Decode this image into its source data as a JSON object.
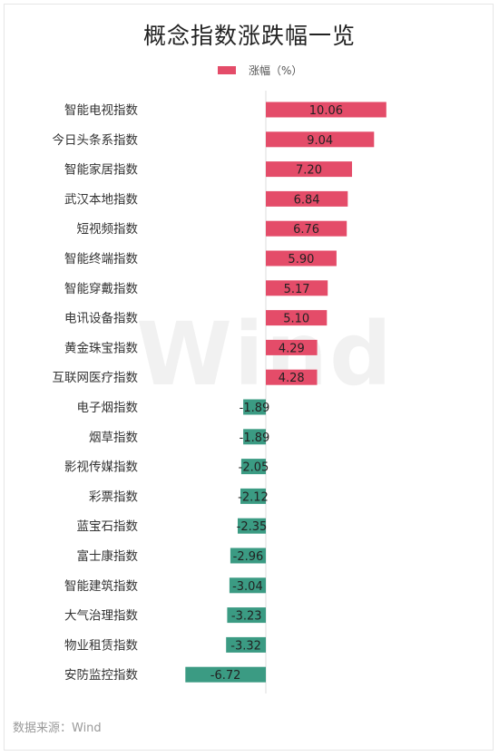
{
  "title": "概念指数涨跌幅一览",
  "legend": {
    "label": "涨幅（%）"
  },
  "watermark": "Wind",
  "source": "数据来源：Wind",
  "colors": {
    "positive": "#e44c69",
    "negative": "#3b9b83",
    "axis": "#dddddd",
    "text": "#333333"
  },
  "chart_data": {
    "type": "bar",
    "orientation": "horizontal",
    "series": [
      {
        "name": "涨幅（%）"
      }
    ],
    "categories": [
      "智能电视指数",
      "今日头条系指数",
      "智能家居指数",
      "武汉本地指数",
      "短视频指数",
      "智能终端指数",
      "智能穿戴指数",
      "电讯设备指数",
      "黄金珠宝指数",
      "互联网医疗指数",
      "电子烟指数",
      "烟草指数",
      "影视传媒指数",
      "彩票指数",
      "蓝宝石指数",
      "富士康指数",
      "智能建筑指数",
      "大气治理指数",
      "物业租赁指数",
      "安防监控指数"
    ],
    "values": [
      10.06,
      9.04,
      7.2,
      6.84,
      6.76,
      5.9,
      5.17,
      5.1,
      4.29,
      4.28,
      -1.89,
      -1.89,
      -2.05,
      -2.12,
      -2.35,
      -2.96,
      -3.04,
      -3.23,
      -3.32,
      -6.72
    ],
    "labels": [
      "10.06",
      "9.04",
      "7.20",
      "6.84",
      "6.76",
      "5.90",
      "5.17",
      "5.10",
      "4.29",
      "4.28",
      "-1.89",
      "-1.89",
      "-2.05",
      "-2.12",
      "-2.35",
      "-2.96",
      "-3.04",
      "-3.23",
      "-3.32",
      "-6.72"
    ],
    "xlim": [
      -6.72,
      10.06
    ],
    "grid": false,
    "legend_position": "top"
  }
}
